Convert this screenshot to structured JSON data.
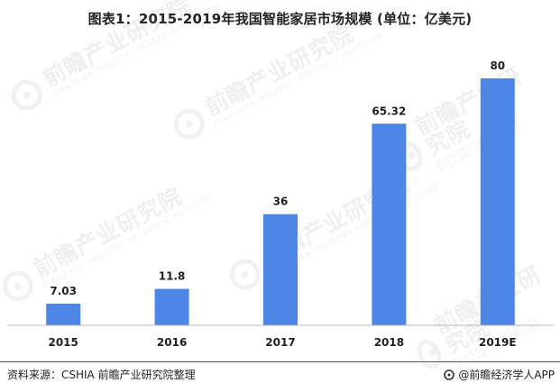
{
  "chart_data": {
    "type": "bar",
    "title": "图表1：2015-2019年我国智能家居市场规模 (单位：亿美元)",
    "categories": [
      "2015",
      "2016",
      "2017",
      "2018",
      "2019E"
    ],
    "values": [
      7.03,
      11.8,
      36,
      65.32,
      80
    ],
    "value_labels": [
      "7.03",
      "11.8",
      "36",
      "65.32",
      "80"
    ],
    "ylim": [
      0,
      80
    ],
    "grid": false,
    "legend": "none",
    "bar_color": "#4d86e6"
  },
  "source": "资料来源：CSHIA 前瞻产业研究院整理",
  "brand_text": "@前瞻经济学人APP",
  "watermark": {
    "main": "前瞻产业研究院",
    "sub": "QIANZHAN INDUSTRY RESEARCH INSTITUTE"
  },
  "colors": {
    "bar": "#4d86e6",
    "axis": "#b9b9b9",
    "footer_line": "#555555"
  },
  "icons": {
    "brand": "qianzhan-logo-icon",
    "watermark": "qianzhan-watermark-icon"
  }
}
